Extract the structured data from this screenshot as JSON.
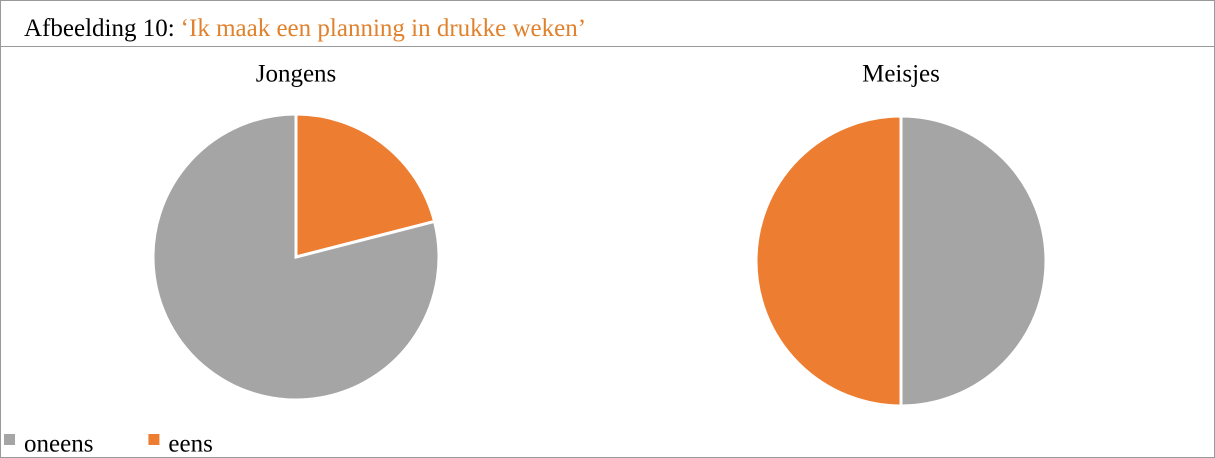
{
  "caption": {
    "label": "Afbeelding 10:",
    "text": "‘Ik maak een planning in drukke weken’"
  },
  "chart_data": [
    {
      "type": "pie",
      "title": "Jongens",
      "categories": [
        "eens",
        "oneens"
      ],
      "values": [
        21,
        79
      ],
      "colors": [
        "#ed7d31",
        "#a5a5a5"
      ]
    },
    {
      "type": "pie",
      "title": "Meisjes",
      "categories": [
        "oneens",
        "eens"
      ],
      "values": [
        50,
        50
      ],
      "colors": [
        "#a5a5a5",
        "#ed7d31"
      ]
    }
  ]
}
